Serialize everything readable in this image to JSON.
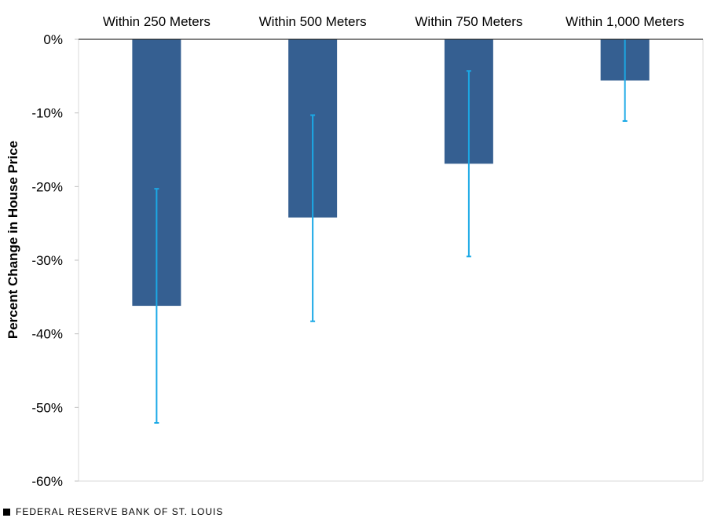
{
  "chart_data": {
    "type": "bar",
    "categories": [
      "Within 250 Meters",
      "Within 500 Meters",
      "Within 750 Meters",
      "Within 1,000 Meters"
    ],
    "values": [
      -36.2,
      -24.2,
      -16.9,
      -5.6
    ],
    "error_low": [
      -52.1,
      -38.3,
      -29.5,
      -11.1
    ],
    "error_high": [
      -20.3,
      -10.3,
      -4.3,
      0.0
    ],
    "ylabel": "Percent Change in House Price",
    "xlabel": "",
    "ylim": [
      -60,
      0
    ],
    "yticks": [
      0,
      -10,
      -20,
      -30,
      -40,
      -50,
      -60
    ],
    "ytick_labels": [
      "0%",
      "-10%",
      "-20%",
      "-30%",
      "-40%",
      "-50%",
      "-60%"
    ],
    "bar_color": "#355F91",
    "error_color": "#1BA9E6",
    "category_axis_position": "top"
  },
  "footer": {
    "source": "FEDERAL RESERVE BANK OF ST. LOUIS"
  }
}
